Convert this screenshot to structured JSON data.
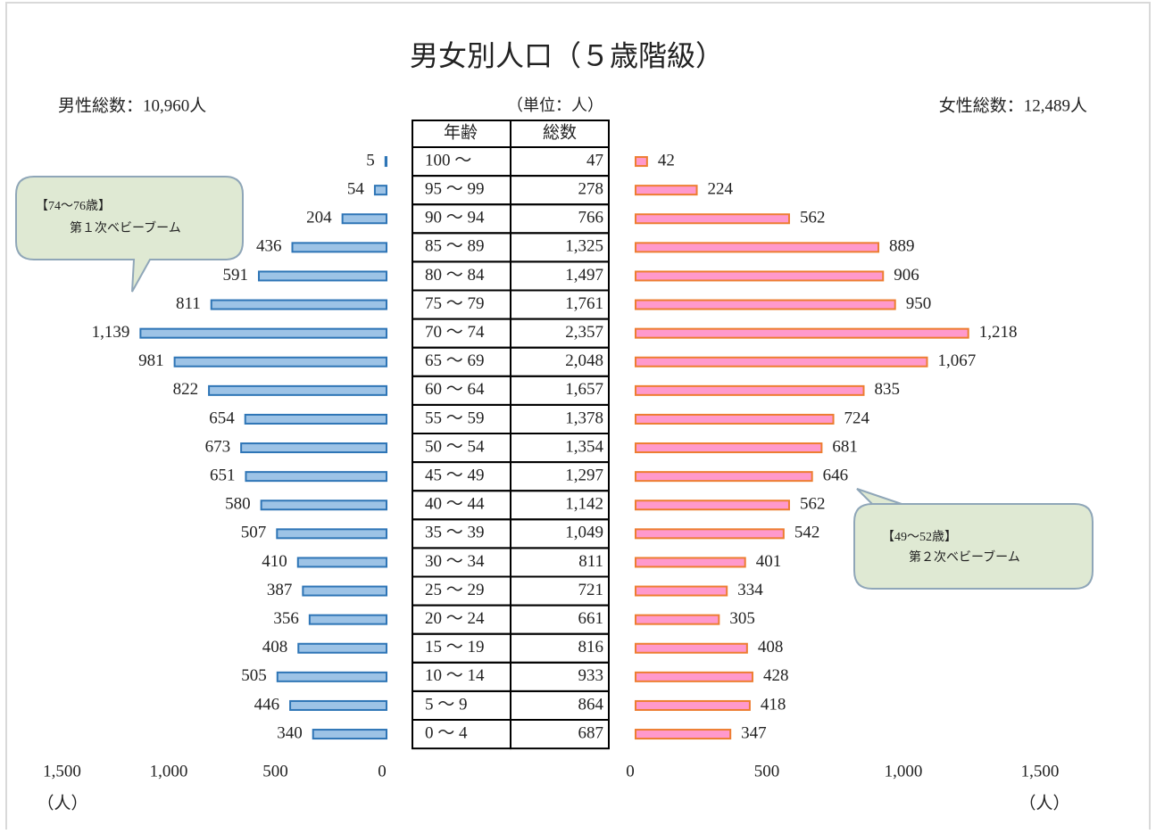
{
  "chart_data": {
    "type": "pyramid",
    "title": "男女別人口（５歳階級）",
    "unit_note": "（単位：人）",
    "table_headers": [
      "年齢",
      "総数"
    ],
    "categories": [
      "100 ～",
      "95 ～ 99",
      "90 ～ 94",
      "85 ～ 89",
      "80 ～ 84",
      "75 ～ 79",
      "70 ～ 74",
      "65 ～ 69",
      "60 ～ 64",
      "55 ～ 59",
      "50 ～ 54",
      "45 ～ 49",
      "40 ～ 44",
      "35 ～ 39",
      "30 ～ 34",
      "25 ～ 29",
      "20 ～ 24",
      "15 ～ 19",
      "10 ～ 14",
      "5 ～ 9",
      "0 ～ 4"
    ],
    "totals": [
      "47",
      "278",
      "766",
      "1,325",
      "1,497",
      "1,761",
      "2,357",
      "2,048",
      "1,657",
      "1,378",
      "1,354",
      "1,297",
      "1,142",
      "1,049",
      "811",
      "721",
      "661",
      "816",
      "933",
      "864",
      "687"
    ],
    "series": [
      {
        "total_label": "男性総数：10,960人",
        "color": "#9dc3e6",
        "stroke": "#2e75b6",
        "side": "left",
        "values": [
          5,
          54,
          204,
          436,
          591,
          811,
          1139,
          981,
          822,
          654,
          673,
          651,
          580,
          507,
          410,
          387,
          356,
          408,
          505,
          446,
          340
        ],
        "value_labels": [
          "5",
          "54",
          "204",
          "436",
          "591",
          "811",
          "1,139",
          "981",
          "822",
          "654",
          "673",
          "651",
          "580",
          "507",
          "410",
          "387",
          "356",
          "408",
          "505",
          "446",
          "340"
        ],
        "xlim": [
          0,
          1500
        ],
        "xticks": [
          0,
          500,
          {
            "value": 1000,
            "label": "1,000"
          },
          {
            "value": 1500,
            "label": "1,500"
          }
        ],
        "unit": "（人）"
      },
      {
        "total_label": "女性総数：12,489人",
        "color": "#ff99cc",
        "stroke": "#ed7d31",
        "side": "right",
        "values": [
          42,
          224,
          562,
          889,
          906,
          950,
          1218,
          1067,
          835,
          724,
          681,
          646,
          562,
          542,
          401,
          334,
          305,
          408,
          428,
          418,
          347
        ],
        "value_labels": [
          "42",
          "224",
          "562",
          "889",
          "906",
          "950",
          "1,218",
          "1,067",
          "835",
          "724",
          "681",
          "646",
          "562",
          "542",
          "401",
          "334",
          "305",
          "408",
          "428",
          "418",
          "347"
        ],
        "xlim": [
          0,
          1500
        ],
        "xticks": [
          0,
          500,
          {
            "value": 1000,
            "label": "1,000"
          },
          {
            "value": 1500,
            "label": "1,500"
          }
        ],
        "unit": "（人）"
      }
    ],
    "annotations": [
      {
        "title": "【74～76歳】",
        "text": "第１次ベビーブーム"
      },
      {
        "title": "【49～52歳】",
        "text": "第２次ベビーブーム"
      }
    ]
  }
}
